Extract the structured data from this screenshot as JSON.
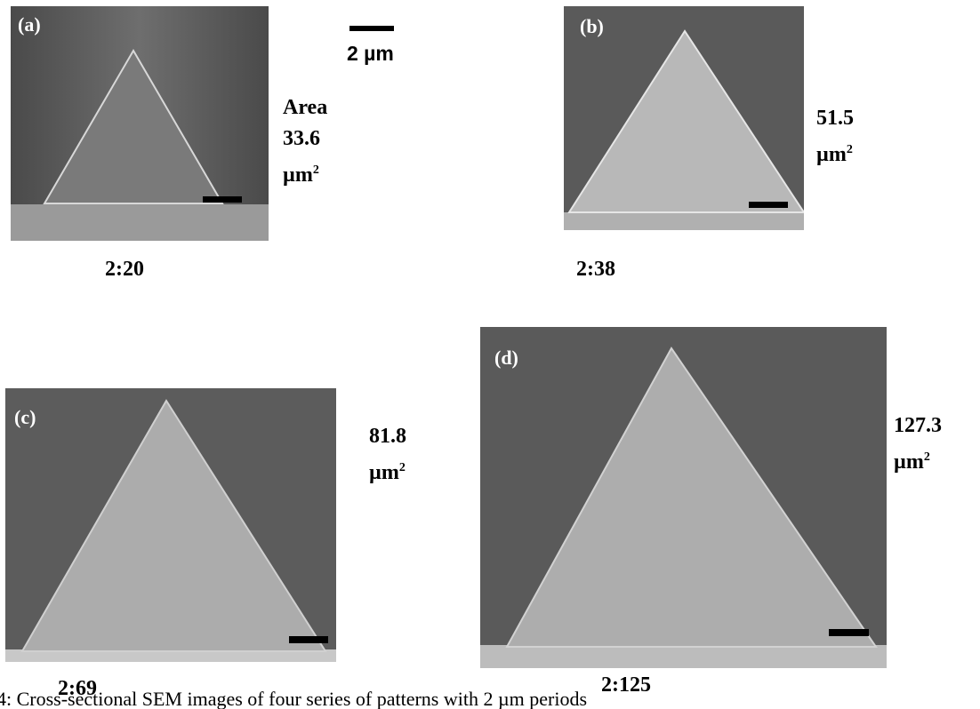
{
  "scale_bar": "2 µm",
  "panels": [
    {
      "label": "(a)",
      "area_prefix": "Area",
      "area_value": "33.6",
      "area_unit": "µm",
      "area_exp": "2",
      "ratio": "2:20"
    },
    {
      "label": "(b)",
      "area_value": "51.5",
      "area_unit": "µm",
      "area_exp": "2",
      "ratio": "2:38"
    },
    {
      "label": "(c)",
      "area_value": "81.8",
      "area_unit": "µm",
      "area_exp": "2",
      "ratio": "2:69"
    },
    {
      "label": "(d)",
      "area_value": "127.3",
      "area_unit": "µm",
      "area_exp": "2",
      "ratio": "2:125"
    }
  ],
  "caption": "4: Cross-sectional SEM images of four series of patterns with 2 µm periods"
}
